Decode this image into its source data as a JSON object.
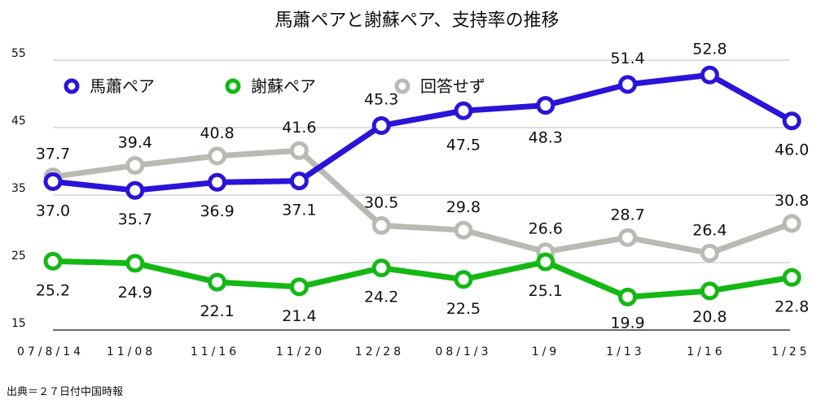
{
  "chart_data": {
    "type": "line",
    "title": "馬蕭ペアと謝蘇ペア、支持率の推移",
    "categories": [
      "07/8/14",
      "11/08",
      "11/16",
      "11/20",
      "12/28",
      "08/1/3",
      "1/9",
      "1/13",
      "1/16",
      "1/25"
    ],
    "ylim": [
      15,
      55
    ],
    "yticks": [
      15,
      25,
      35,
      45,
      55
    ],
    "grid": true,
    "legend_position": "top-left",
    "series": [
      {
        "name": "馬蕭ペア",
        "color": "#2a14d8",
        "values": [
          37.0,
          35.7,
          36.9,
          37.1,
          45.3,
          47.5,
          48.3,
          51.4,
          52.8,
          46.0
        ],
        "labels": [
          "37.0",
          "35.7",
          "36.9",
          "37.1",
          "45.3",
          "47.5",
          "48.3",
          "51.4",
          "52.8",
          "46.0"
        ]
      },
      {
        "name": "謝蘇ペア",
        "color": "#14b814",
        "values": [
          25.2,
          24.9,
          22.1,
          21.4,
          24.2,
          22.5,
          25.1,
          19.9,
          20.8,
          22.8
        ],
        "labels": [
          "25.2",
          "24.9",
          "22.1",
          "21.4",
          "24.2",
          "22.5",
          "25.1",
          "19.9",
          "20.8",
          "22.8"
        ]
      },
      {
        "name": "回答せず",
        "color": "#b8bbb2",
        "values": [
          37.7,
          39.4,
          40.8,
          41.6,
          30.5,
          29.8,
          26.6,
          28.7,
          26.4,
          30.8
        ],
        "labels": [
          "37.7",
          "39.4",
          "40.8",
          "41.6",
          "30.5",
          "29.8",
          "26.6",
          "28.7",
          "26.4",
          "30.8"
        ]
      }
    ],
    "source": "出典＝２７日付中国時報"
  }
}
